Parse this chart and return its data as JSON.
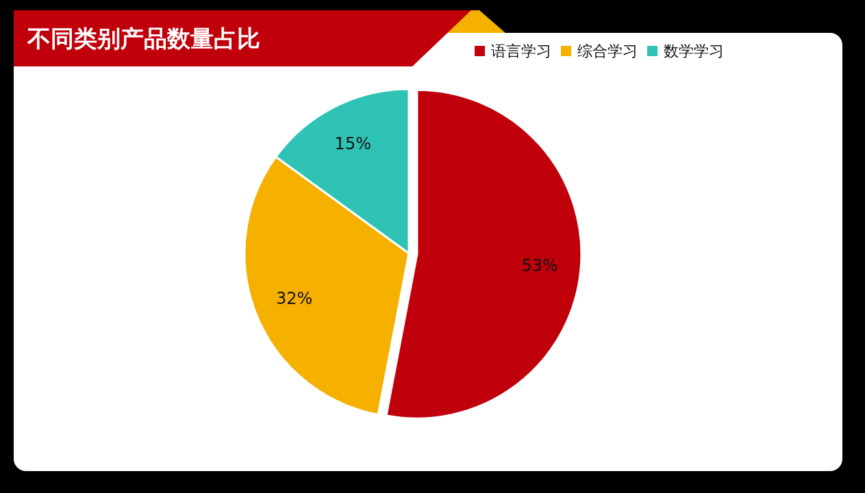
{
  "chart_data": {
    "type": "pie",
    "title": "不同类别产品数量占比",
    "categories": [
      "语言学习",
      "综合学习",
      "数学学习"
    ],
    "values": [
      53,
      32,
      15
    ],
    "colors": [
      "#c0000b",
      "#f5b000",
      "#2fc3b5"
    ],
    "value_labels": [
      "53%",
      "32%",
      "15%"
    ],
    "legend": "top right"
  }
}
